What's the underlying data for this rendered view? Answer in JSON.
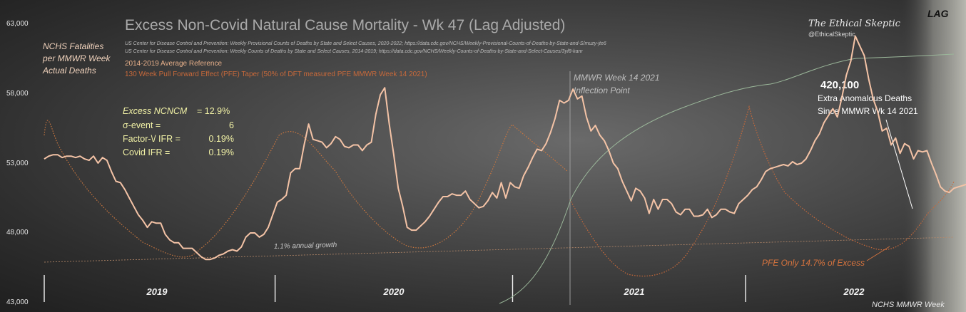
{
  "chart_data": {
    "type": "line",
    "title": "Excess Non-Covid Natural Cause Mortality - Wk 47 (Lag Adjusted)",
    "sources": [
      "US Center for Disease Control and Prevention: Weekly  Provisional Counts of Deaths by State and Select Causes, 2020-2022; https://data.cdc.gov/NCHS/Weekly-Provisional-Counts-of-Deaths-by-State-and-S/muzy-jte6",
      "US Center for Disease Control and Prevention: Weekly  Counts of Deaths by State and Select Causes, 2014-2019; https://data.cdc.gov/NCHS/Weekly-Counts-of-Deaths-by-State-and-Select-Causes/3yf8-kanr"
    ],
    "ylabel": [
      "NCHS Fatalities",
      "per MMWR Week",
      "Actual Deaths"
    ],
    "xlabel": "NCHS MMWR Week",
    "ylim": [
      43000,
      63000
    ],
    "yticks": [
      "63,000",
      "58,000",
      "53,000",
      "48,000",
      "43,000"
    ],
    "ytick_values": [
      63000,
      58000,
      53000,
      48000,
      43000
    ],
    "x_year_labels": [
      "2019",
      "2020",
      "2021",
      "2022"
    ],
    "x_range_weeks": [
      0,
      203
    ],
    "year_start_weeks": [
      0,
      52,
      105,
      157
    ],
    "series": [
      {
        "name": "",
        "color": "#f4c3a6",
        "style": "solid",
        "values": [
          53300,
          53500,
          53600,
          53600,
          53400,
          53500,
          53500,
          53400,
          53500,
          53300,
          53200,
          53500,
          53000,
          53400,
          53200,
          52400,
          51700,
          51600,
          51100,
          50500,
          49900,
          49300,
          48900,
          48400,
          48800,
          48700,
          48700,
          47900,
          47500,
          47300,
          47300,
          46900,
          46900,
          46900,
          46600,
          46300,
          46100,
          46100,
          46200,
          46400,
          46500,
          46700,
          46800,
          46700,
          47000,
          47700,
          48000,
          48000,
          47700,
          47900,
          48400,
          49300,
          50200,
          50400,
          50700,
          52300,
          52600,
          52600,
          54300,
          55800,
          54700,
          54600,
          54500,
          54100,
          54400,
          54900,
          54700,
          54200,
          54100,
          54300,
          54300,
          53900,
          54300,
          54500,
          56500,
          57900,
          58400,
          55800,
          53600,
          51200,
          49900,
          48400,
          48200,
          48200,
          48500,
          48800,
          49200,
          49700,
          50200,
          50600,
          50600,
          50800,
          50700,
          50700,
          51000,
          50400,
          50100,
          49800,
          49900,
          50300,
          50900,
          50500,
          51600,
          50500,
          51600,
          51300,
          51200,
          52100,
          52700,
          53400,
          54000,
          53900,
          54400,
          55200,
          56200,
          57500,
          57300,
          57500,
          58300,
          57600,
          57800,
          56300,
          55300,
          55700,
          55000,
          54600,
          53900,
          53000,
          52600,
          51700,
          51000,
          50300,
          51200,
          51000,
          50500,
          49400,
          50400,
          49700,
          50400,
          50400,
          50100,
          49500,
          49300,
          49700,
          49700,
          49200,
          49200,
          49300,
          49700,
          49100,
          49300,
          49700,
          49700,
          49500,
          49400,
          50100,
          50400,
          50700,
          51100,
          51300,
          51800,
          52400,
          52600,
          52700,
          52800,
          52900,
          52800,
          53100,
          52900,
          53000,
          53300,
          53900,
          54600,
          55100,
          55900,
          56400,
          56900,
          56300,
          57700,
          59300,
          60300,
          62100,
          61400,
          60700,
          59000,
          57600,
          56700,
          55300,
          55500,
          54300,
          54800,
          53700,
          54400,
          54200,
          53300,
          53900,
          53800,
          53900,
          53000,
          52200,
          51300,
          51000,
          50900,
          51200,
          51300,
          51400,
          51500,
          51500,
          51800,
          51700,
          51900,
          51400,
          51800,
          52000,
          51800,
          51900,
          51000,
          51900,
          52200,
          52500
        ]
      },
      {
        "name": "2014-2019 Average Reference",
        "color": "#c9763f",
        "style": "dotted",
        "values": []
      },
      {
        "name": "130 Week Pull Forward Effect (PFE) Taper (50% of DFT measured PFE MMWR Week 14 2021)",
        "color": "#c8693a",
        "style": "dashed",
        "values": []
      }
    ],
    "stats": {
      "excess_label": "Excess NCNCM",
      "excess_value": "= 12.9%",
      "sigma_label": "σ-event =",
      "sigma_value": "6",
      "factor_label": "Factor-\\/ IFR =",
      "factor_value": "0.19%",
      "covid_label": "Covid IFR =",
      "covid_value": "0.19%"
    },
    "annotations": {
      "inflection_line1": "MMWR Week 14 2021",
      "inflection_line2": "Inflection Point",
      "excess_count": "420,100",
      "excess_line1": "Extra Anomalous Deaths",
      "excess_line2": "Since MMWR Wk 14 2021",
      "pfe_note": "PFE Only 14.7% of Excess",
      "growth_note": "1.1% annual  growth",
      "brand_name": "The Ethical Skeptic",
      "brand_handle": "@EthicalSkeptic",
      "lag_label": "LAG"
    },
    "grid": false,
    "legend": "top-left"
  }
}
